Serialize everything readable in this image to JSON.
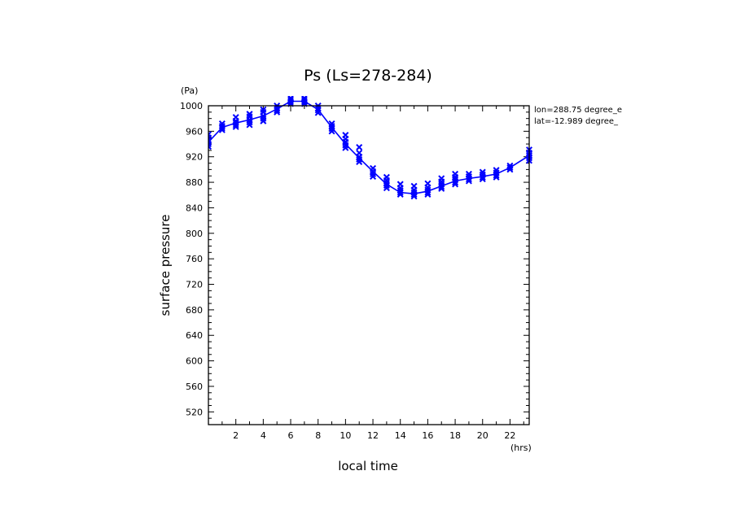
{
  "chart_data": {
    "type": "line",
    "title": "Ps (Ls=278-284)",
    "xlabel": "local time",
    "ylabel": "surface pressure",
    "x_unit": "(hrs)",
    "y_unit": "(Pa)",
    "xlim": [
      0,
      23.4
    ],
    "ylim": [
      500,
      1000
    ],
    "x_ticks": [
      2,
      4,
      6,
      8,
      10,
      12,
      14,
      16,
      18,
      20,
      22
    ],
    "y_ticks": [
      520,
      560,
      600,
      640,
      680,
      720,
      760,
      800,
      840,
      880,
      920,
      960,
      1000
    ],
    "grid": false,
    "legend": "none",
    "annotations": [
      "lon=288.75 degree_e",
      "lat=-12.989 degree_"
    ],
    "series": [
      {
        "kind": "mean-line",
        "color": "#0000ff",
        "x": [
          0,
          1,
          2,
          3,
          4,
          5,
          6,
          7,
          8,
          9,
          10,
          11,
          12,
          13,
          14,
          15,
          16,
          17,
          18,
          19,
          20,
          21,
          22,
          23.4
        ],
        "y": [
          943,
          966,
          973,
          978,
          984,
          995,
          1007,
          1007,
          994,
          966,
          940,
          918,
          897,
          877,
          864,
          862,
          866,
          874,
          882,
          886,
          889,
          893,
          903,
          922
        ]
      }
    ],
    "scatter": {
      "marker": "x",
      "color": "#0000ff",
      "points": [
        [
          0,
          936
        ],
        [
          0,
          940
        ],
        [
          0,
          945
        ],
        [
          0,
          950
        ],
        [
          0,
          955
        ],
        [
          1,
          962
        ],
        [
          1,
          965
        ],
        [
          1,
          968
        ],
        [
          1,
          972
        ],
        [
          2,
          967
        ],
        [
          2,
          970
        ],
        [
          2,
          973
        ],
        [
          2,
          976
        ],
        [
          2,
          982
        ],
        [
          3,
          970
        ],
        [
          3,
          974
        ],
        [
          3,
          978
        ],
        [
          3,
          983
        ],
        [
          3,
          987
        ],
        [
          4,
          976
        ],
        [
          4,
          980
        ],
        [
          4,
          984
        ],
        [
          4,
          990
        ],
        [
          4,
          994
        ],
        [
          5,
          990
        ],
        [
          5,
          993
        ],
        [
          5,
          996
        ],
        [
          5,
          1000
        ],
        [
          6,
          1003
        ],
        [
          6,
          1006
        ],
        [
          6,
          1009
        ],
        [
          6,
          1012
        ],
        [
          7,
          1003
        ],
        [
          7,
          1006
        ],
        [
          7,
          1009
        ],
        [
          7,
          1012
        ],
        [
          8,
          989
        ],
        [
          8,
          993
        ],
        [
          8,
          996
        ],
        [
          8,
          1000
        ],
        [
          9,
          960
        ],
        [
          9,
          964
        ],
        [
          9,
          968
        ],
        [
          9,
          972
        ],
        [
          10,
          934
        ],
        [
          10,
          938
        ],
        [
          10,
          943
        ],
        [
          10,
          948
        ],
        [
          10,
          954
        ],
        [
          11,
          912
        ],
        [
          11,
          916
        ],
        [
          11,
          920
        ],
        [
          11,
          926
        ],
        [
          11,
          935
        ],
        [
          12,
          889
        ],
        [
          12,
          893
        ],
        [
          12,
          897
        ],
        [
          12,
          902
        ],
        [
          13,
          871
        ],
        [
          13,
          875
        ],
        [
          13,
          879
        ],
        [
          13,
          883
        ],
        [
          13,
          888
        ],
        [
          14,
          861
        ],
        [
          14,
          864
        ],
        [
          14,
          867
        ],
        [
          14,
          871
        ],
        [
          14,
          877
        ],
        [
          15,
          858
        ],
        [
          15,
          861
        ],
        [
          15,
          864
        ],
        [
          15,
          868
        ],
        [
          15,
          874
        ],
        [
          16,
          861
        ],
        [
          16,
          864
        ],
        [
          16,
          868
        ],
        [
          16,
          872
        ],
        [
          16,
          878
        ],
        [
          17,
          870
        ],
        [
          17,
          873
        ],
        [
          17,
          877
        ],
        [
          17,
          881
        ],
        [
          17,
          886
        ],
        [
          18,
          877
        ],
        [
          18,
          880
        ],
        [
          18,
          884
        ],
        [
          18,
          888
        ],
        [
          18,
          893
        ],
        [
          19,
          882
        ],
        [
          19,
          885
        ],
        [
          19,
          889
        ],
        [
          19,
          893
        ],
        [
          20,
          885
        ],
        [
          20,
          888
        ],
        [
          20,
          892
        ],
        [
          20,
          896
        ],
        [
          21,
          888
        ],
        [
          21,
          891
        ],
        [
          21,
          895
        ],
        [
          21,
          899
        ],
        [
          22,
          900
        ],
        [
          22,
          903
        ],
        [
          22,
          906
        ],
        [
          23.4,
          914
        ],
        [
          23.4,
          918
        ],
        [
          23.4,
          922
        ],
        [
          23.4,
          926
        ],
        [
          23.4,
          931
        ]
      ]
    }
  }
}
